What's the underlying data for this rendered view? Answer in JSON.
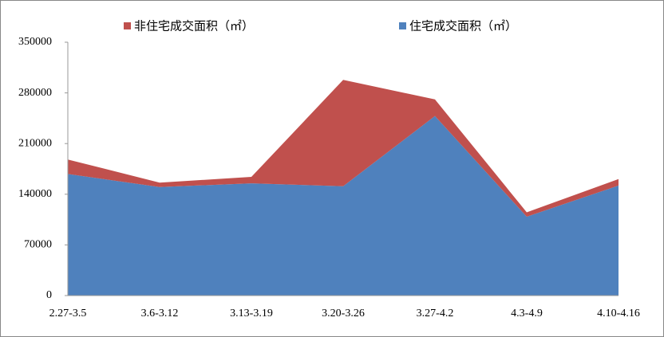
{
  "chart_data": {
    "type": "stacked-area",
    "categories": [
      "2.27-3.5",
      "3.6-3.12",
      "3.13-3.19",
      "3.20-3.26",
      "3.27-4.2",
      "4.3-4.9",
      "4.10-4.16"
    ],
    "series": [
      {
        "name": "非住宅成交面积（㎡）",
        "color": "#c0504d",
        "values": [
          20000,
          6000,
          9000,
          147000,
          23000,
          6000,
          9000
        ]
      },
      {
        "name": "住宅成交面积（㎡）",
        "color": "#4f81bd",
        "values": [
          168000,
          150000,
          155000,
          151000,
          248000,
          109000,
          152000
        ]
      }
    ],
    "ylim": [
      0,
      350000
    ],
    "yticks": [
      0,
      70000,
      140000,
      210000,
      280000,
      350000
    ],
    "grid": false,
    "legend": "top"
  }
}
